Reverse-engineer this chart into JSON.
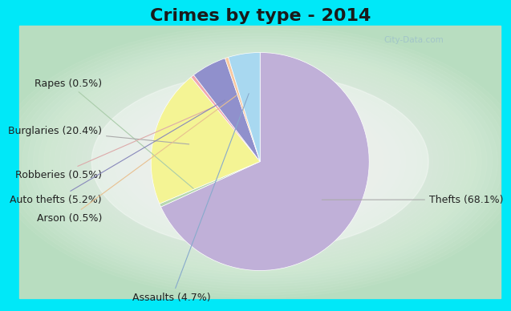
{
  "title": "Crimes by type - 2014",
  "slices": [
    {
      "label": "Thefts (68.1%)",
      "pct": 68.1,
      "color": "#c0b0d8"
    },
    {
      "label": "Rapes (0.5%)",
      "pct": 0.5,
      "color": "#b8d8b0"
    },
    {
      "label": "Burglaries (20.4%)",
      "pct": 20.4,
      "color": "#f4f494"
    },
    {
      "label": "Robberies (0.5%)",
      "pct": 0.5,
      "color": "#f0a8b0"
    },
    {
      "label": "Auto thefts (5.2%)",
      "pct": 5.2,
      "color": "#9090cc"
    },
    {
      "label": "Arson (0.5%)",
      "pct": 0.5,
      "color": "#f8c8a0"
    },
    {
      "label": "Assaults (4.7%)",
      "pct": 4.7,
      "color": "#a8d8f0"
    }
  ],
  "startangle": 90,
  "bg_cyan": "#00e8f8",
  "bg_green_outer": "#b8ddc0",
  "bg_green_inner": "#e0f0e8",
  "title_fontsize": 16,
  "label_fontsize": 9,
  "watermark": "City-Data.com",
  "title_color": "#1a1a1a",
  "label_color": "#222222",
  "label_positions": {
    "Thefts (68.1%)": [
      1.45,
      -0.45,
      "left"
    ],
    "Rapes (0.5%)": [
      -1.55,
      0.62,
      "right"
    ],
    "Burglaries (20.4%)": [
      -1.55,
      0.18,
      "right"
    ],
    "Robberies (0.5%)": [
      -1.55,
      -0.22,
      "right"
    ],
    "Auto thefts (5.2%)": [
      -1.55,
      -0.45,
      "right"
    ],
    "Arson (0.5%)": [
      -1.55,
      -0.62,
      "right"
    ],
    "Assaults (4.7%)": [
      -0.55,
      -1.35,
      "right"
    ]
  },
  "arrow_colors": {
    "Thefts (68.1%)": "#aaaaaa",
    "Rapes (0.5%)": "#aaccaa",
    "Burglaries (20.4%)": "#aaaaaa",
    "Robberies (0.5%)": "#ddaaaa",
    "Auto thefts (5.2%)": "#8888bb",
    "Arson (0.5%)": "#e8c090",
    "Assaults (4.7%)": "#88aacc"
  }
}
